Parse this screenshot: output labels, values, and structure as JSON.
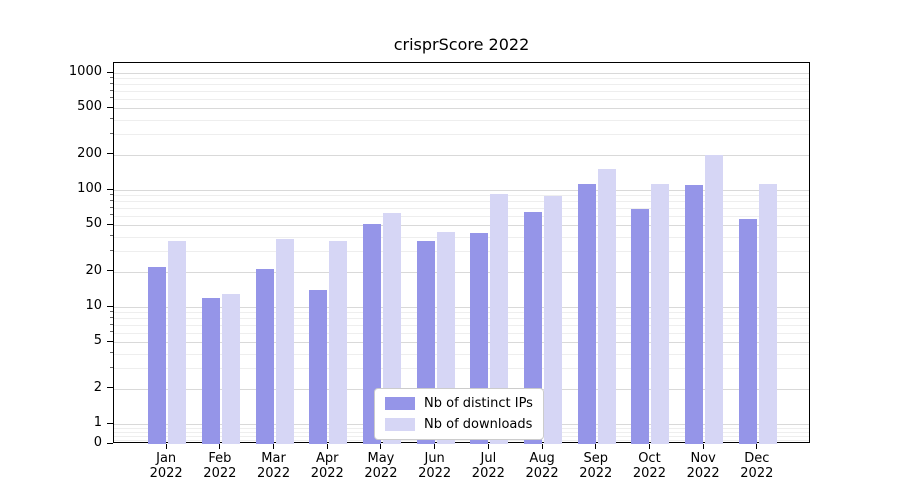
{
  "title": "crisprScore 2022",
  "legend": {
    "items": [
      {
        "label": "Nb of distinct IPs",
        "color": "#9595e8"
      },
      {
        "label": "Nb of downloads",
        "color": "#d6d6f5"
      }
    ]
  },
  "axes": {
    "year": "2022",
    "x_months": [
      "Jan",
      "Feb",
      "Mar",
      "Apr",
      "May",
      "Jun",
      "Jul",
      "Aug",
      "Sep",
      "Oct",
      "Nov",
      "Dec"
    ],
    "y_ticks": [
      0,
      1,
      2,
      5,
      10,
      20,
      50,
      100,
      200,
      500,
      1000
    ],
    "y_minor_ticks": [
      0.2,
      0.4,
      0.6,
      0.8,
      3,
      4,
      6,
      7,
      8,
      9,
      30,
      40,
      60,
      70,
      80,
      90,
      300,
      400,
      600,
      700,
      800,
      900
    ]
  },
  "chart_data": {
    "type": "bar",
    "title": "crisprScore 2022",
    "scale": "symlog",
    "ylim": [
      0,
      1000
    ],
    "grid": true,
    "legend_position": "lower center",
    "categories": [
      "Jan 2022",
      "Feb 2022",
      "Mar 2022",
      "Apr 2022",
      "May 2022",
      "Jun 2022",
      "Jul 2022",
      "Aug 2022",
      "Sep 2022",
      "Oct 2022",
      "Nov 2022",
      "Dec 2022"
    ],
    "series": [
      {
        "name": "Nb of distinct IPs",
        "color": "#9595e8",
        "values": [
          22,
          12,
          21,
          14,
          51,
          37,
          43,
          65,
          112,
          69,
          111,
          56
        ]
      },
      {
        "name": "Nb of downloads",
        "color": "#d6d6f5",
        "values": [
          37,
          13,
          38,
          37,
          63,
          44,
          93,
          89,
          152,
          113,
          200,
          113
        ]
      }
    ]
  }
}
